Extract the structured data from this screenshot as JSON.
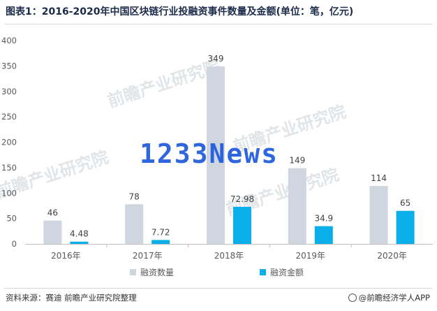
{
  "title": "图表1：2016-2020年中国区块链行业投融资事件数量及金额(单位：笔，亿元)",
  "source": "资料来源：赛迪 前瞻产业研究院整理",
  "brand": "@前瞻经济学人APP",
  "watermark": "1233News",
  "colors": {
    "series1": "#cfd6e0",
    "series2": "#0aaee8",
    "axis_text": "#595959",
    "title": "#1b2b4a"
  },
  "chart_data": {
    "type": "bar",
    "categories": [
      "2016年",
      "2017年",
      "2018年",
      "2019年",
      "2020年"
    ],
    "series": [
      {
        "name": "融资数量",
        "values": [
          46,
          78,
          349,
          149,
          114
        ],
        "labels": [
          "46",
          "78",
          "349",
          "149",
          "114"
        ]
      },
      {
        "name": "融资金额",
        "values": [
          4.48,
          7.72,
          72.98,
          34.9,
          65
        ],
        "labels": [
          "4.48",
          "7.72",
          "72.98",
          "34.9",
          "65"
        ]
      }
    ],
    "yticks": [
      "0",
      "50",
      "100",
      "150",
      "200",
      "250",
      "300",
      "350",
      "400"
    ],
    "ylim": [
      0,
      400
    ],
    "grid": false,
    "legend": "bottom"
  }
}
